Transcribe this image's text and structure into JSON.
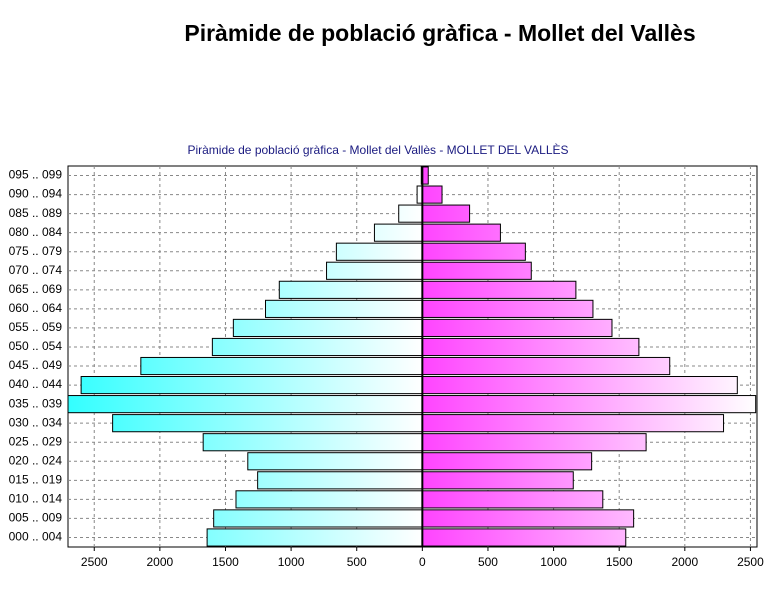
{
  "page_title": "Piràmide de població gràfica - Mollet del Vallès",
  "chart_data": {
    "type": "bar",
    "orientation": "horizontal",
    "title": "Piràmide de població gràfica - Mollet del Vallès - MOLLET DEL VALLÈS",
    "categories": [
      "000 .. 004",
      "005 .. 009",
      "010 .. 014",
      "015 .. 019",
      "020 .. 024",
      "025 .. 029",
      "030 .. 034",
      "035 .. 039",
      "040 .. 044",
      "045 .. 049",
      "050 .. 054",
      "055 .. 059",
      "060 .. 064",
      "065 .. 069",
      "070 .. 074",
      "075 .. 079",
      "080 .. 084",
      "085 .. 089",
      "090 .. 094",
      "095 .. 099"
    ],
    "series": [
      {
        "color": "#33ffff",
        "values": [
          -1640,
          -1590,
          -1420,
          -1255,
          -1330,
          -1670,
          -2360,
          -2700,
          -2600,
          -2145,
          -1600,
          -1440,
          -1195,
          -1090,
          -730,
          -655,
          -365,
          -180,
          -40,
          -8
        ]
      },
      {
        "color": "#ff44ff",
        "values": [
          1550,
          1610,
          1375,
          1150,
          1290,
          1705,
          2295,
          2540,
          2400,
          1885,
          1650,
          1445,
          1300,
          1170,
          830,
          785,
          595,
          360,
          150,
          45
        ]
      }
    ],
    "xlim": [
      -2700,
      2550
    ],
    "xticks": [
      {
        "value": -2500,
        "label": "2500"
      },
      {
        "value": -2000,
        "label": "2000"
      },
      {
        "value": -1500,
        "label": "1500"
      },
      {
        "value": -1000,
        "label": "1000"
      },
      {
        "value": -500,
        "label": "500"
      },
      0,
      500,
      1000,
      1500,
      2000,
      2500
    ],
    "grid": true
  }
}
